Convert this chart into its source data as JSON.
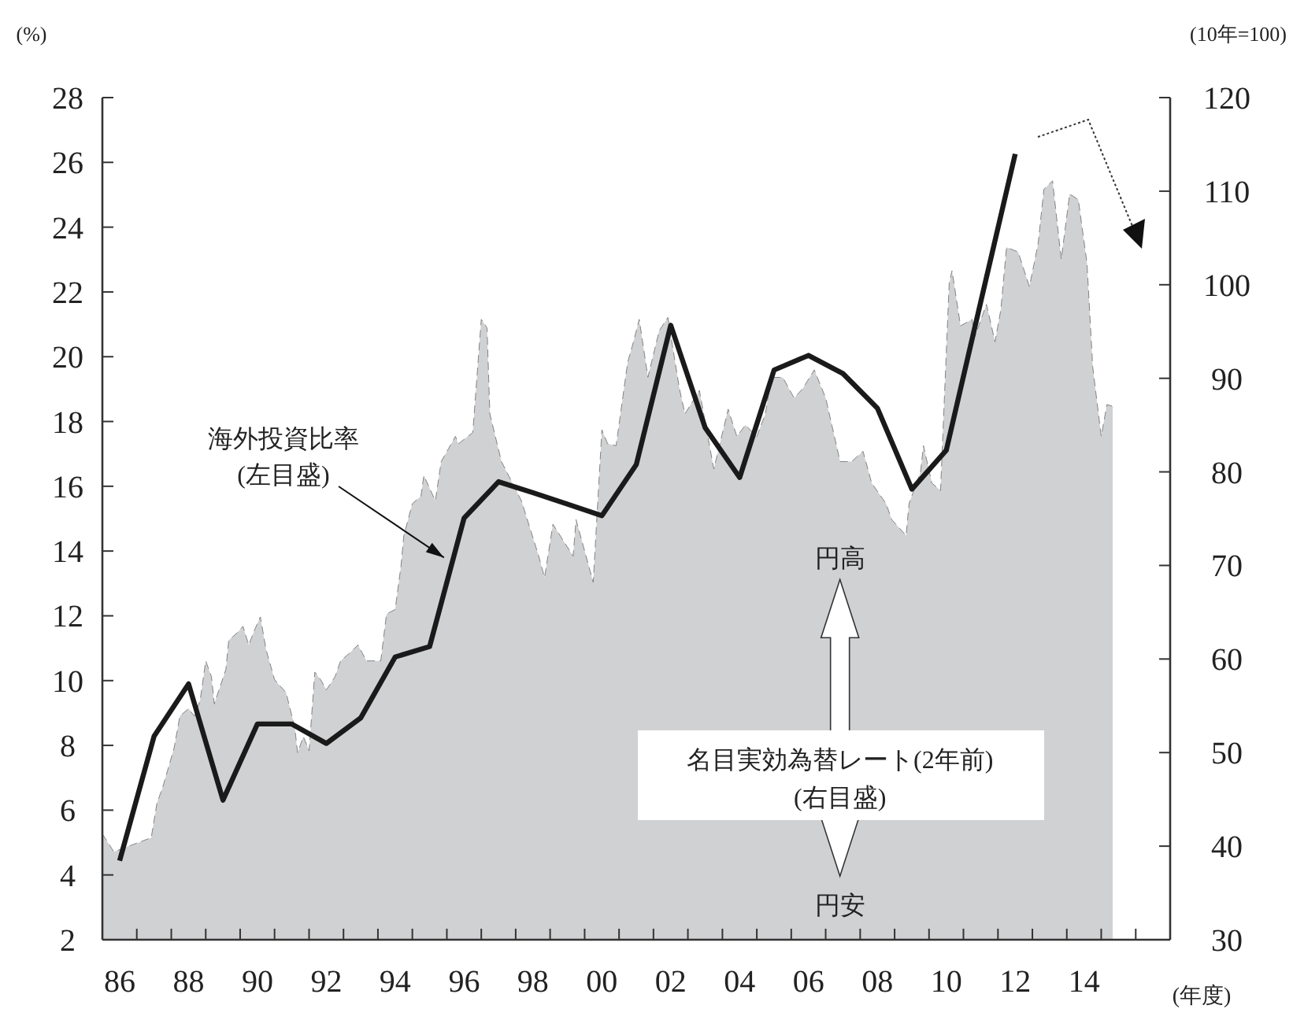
{
  "chart_data": {
    "type": "line",
    "ylabel": "(%)",
    "y2label": "(10年=100)",
    "xlabel": "(年度)",
    "xlim": [
      "1986-04-01",
      "2017-04-01"
    ],
    "ylim": [
      2,
      28
    ],
    "y2lim": [
      30,
      120
    ],
    "yticks": [
      2,
      4,
      6,
      8,
      10,
      12,
      14,
      16,
      18,
      20,
      22,
      24,
      26,
      28
    ],
    "y2ticks": [
      30,
      40,
      50,
      60,
      70,
      80,
      90,
      100,
      110,
      120
    ],
    "xticks": [
      {
        "value": "1986-04-01",
        "label": null
      },
      {
        "value": "1987-04-01",
        "label": null
      },
      {
        "value": "1988-04-01",
        "label": null
      },
      {
        "value": "1989-04-01",
        "label": null
      },
      {
        "value": "1990-04-01",
        "label": null
      },
      {
        "value": "1991-04-01",
        "label": null
      },
      {
        "value": "1992-04-01",
        "label": null
      },
      {
        "value": "1993-04-01",
        "label": null
      },
      {
        "value": "1994-04-01",
        "label": null
      },
      {
        "value": "1995-04-01",
        "label": null
      },
      {
        "value": "1996-04-01",
        "label": null
      },
      {
        "value": "1997-04-01",
        "label": null
      },
      {
        "value": "1998-04-01",
        "label": null
      },
      {
        "value": "1999-04-01",
        "label": null
      },
      {
        "value": "2000-04-01",
        "label": null
      },
      {
        "value": "2001-04-01",
        "label": null
      },
      {
        "value": "2002-04-01",
        "label": null
      },
      {
        "value": "2003-04-01",
        "label": null
      },
      {
        "value": "2004-04-01",
        "label": null
      },
      {
        "value": "2005-04-01",
        "label": null
      },
      {
        "value": "2006-04-01",
        "label": null
      },
      {
        "value": "2007-04-01",
        "label": null
      },
      {
        "value": "2008-04-01",
        "label": null
      },
      {
        "value": "2009-04-01",
        "label": null
      },
      {
        "value": "2010-04-01",
        "label": null
      },
      {
        "value": "2011-04-01",
        "label": null
      },
      {
        "value": "2012-04-01",
        "label": null
      },
      {
        "value": "2013-04-01",
        "label": null
      },
      {
        "value": "2014-04-01",
        "label": null
      },
      {
        "value": "2015-04-01",
        "label": null
      },
      {
        "value": "2016-04-01",
        "label": null
      },
      {
        "value": "1986-10-01",
        "label": "86"
      },
      {
        "value": "1988-10-01",
        "label": "88"
      },
      {
        "value": "1990-10-01",
        "label": "90"
      },
      {
        "value": "1992-10-01",
        "label": "92"
      },
      {
        "value": "1994-10-01",
        "label": "94"
      },
      {
        "value": "1996-10-01",
        "label": "96"
      },
      {
        "value": "1998-10-01",
        "label": "98"
      },
      {
        "value": "2000-10-01",
        "label": "00"
      },
      {
        "value": "2002-10-01",
        "label": "02"
      },
      {
        "value": "2004-10-01",
        "label": "04"
      },
      {
        "value": "2006-10-01",
        "label": "06"
      },
      {
        "value": "2008-10-01",
        "label": "08"
      },
      {
        "value": "2010-10-01",
        "label": "10"
      },
      {
        "value": "2012-10-01",
        "label": "12"
      },
      {
        "value": "2014-10-01",
        "label": "14"
      }
    ],
    "grid": false,
    "series": [
      {
        "type": "area",
        "axis": "y2",
        "color": "#d0d1d3",
        "line_style": "dashed",
        "x": [
          "1986-04",
          "1986-08",
          "1987-02",
          "1987-09",
          "1987-11",
          "1988-01",
          "1988-05",
          "1988-07",
          "1988-10",
          "1988-12",
          "1989-02",
          "1989-04",
          "1989-06",
          "1989-07",
          "1989-11",
          "1989-12",
          "1990-03",
          "1990-05",
          "1990-07",
          "1990-09",
          "1990-11",
          "1991-01",
          "1991-04",
          "1991-08",
          "1991-11",
          "1991-12",
          "1992-02",
          "1992-04",
          "1992-06",
          "1992-08",
          "1992-10",
          "1993-01",
          "1993-03",
          "1993-06",
          "1993-09",
          "1993-12",
          "1994-05",
          "1994-07",
          "1994-10",
          "1994-12",
          "1995-01",
          "1995-04",
          "1995-07",
          "1995-08",
          "1995-12",
          "1996-02",
          "1996-07",
          "1996-08",
          "1997-01",
          "1997-04",
          "1997-06",
          "1997-07",
          "1997-11",
          "1998-06",
          "1998-12",
          "1999-02",
          "1999-05",
          "1999-12",
          "2000-01",
          "2000-07",
          "2000-10",
          "2000-12",
          "2001-03",
          "2001-07",
          "2001-09",
          "2001-11",
          "2002-02",
          "2002-06",
          "2002-09",
          "2003-01",
          "2003-03",
          "2003-08",
          "2004-01",
          "2004-06",
          "2004-09",
          "2004-12",
          "2005-04",
          "2005-07",
          "2005-09",
          "2006-01",
          "2006-05",
          "2006-08",
          "2006-12",
          "2007-04",
          "2007-09",
          "2008-01",
          "2008-05",
          "2008-08",
          "2009-01",
          "2009-03",
          "2009-08",
          "2009-09",
          "2010-01",
          "2010-02",
          "2010-05",
          "2010-08",
          "2010-11",
          "2010-12",
          "2011-03",
          "2011-07",
          "2011-08",
          "2011-12",
          "2012-03",
          "2012-05",
          "2012-07",
          "2012-11",
          "2013-03",
          "2013-06",
          "2013-08",
          "2013-11",
          "2014-02",
          "2014-05",
          "2014-08",
          "2014-11",
          "2015-01",
          "2015-04",
          "2015-06",
          "2015-08"
        ],
        "values": [
          41.3,
          39.4,
          40.1,
          40.9,
          44.6,
          46.3,
          50.5,
          53.9,
          54.7,
          53.9,
          55.6,
          59.8,
          58.1,
          55.2,
          58.9,
          62.0,
          62.8,
          63.5,
          61.5,
          63.1,
          64.5,
          61.0,
          57.8,
          56.4,
          52.7,
          50.0,
          51.7,
          50.2,
          58.6,
          57.8,
          56.7,
          58.1,
          59.8,
          60.6,
          61.5,
          59.8,
          59.8,
          64.8,
          65.3,
          69.9,
          73.2,
          76.6,
          77.4,
          79.6,
          76.9,
          81.1,
          83.8,
          83.0,
          84.2,
          96.3,
          95.4,
          86.2,
          81.1,
          76.9,
          71.0,
          68.7,
          74.4,
          71.0,
          74.9,
          68.2,
          84.5,
          83.0,
          82.8,
          91.7,
          93.9,
          96.3,
          90.1,
          95.1,
          96.5,
          88.9,
          86.2,
          88.7,
          80.3,
          86.7,
          83.8,
          85.0,
          83.8,
          86.2,
          90.1,
          90.1,
          87.9,
          88.9,
          90.9,
          87.9,
          81.1,
          81.1,
          82.2,
          78.8,
          76.6,
          74.9,
          73.2,
          76.6,
          80.0,
          82.8,
          78.8,
          78.0,
          100.2,
          101.5,
          95.6,
          96.3,
          94.5,
          97.9,
          93.9,
          97.3,
          104.0,
          103.5,
          99.8,
          104.4,
          110.2,
          111.1,
          102.7,
          109.7,
          109.1,
          102.3,
          91.2,
          83.8,
          87.2,
          87.0
        ]
      },
      {
        "type": "line",
        "color": "#1a1a1a",
        "line_style": "solid",
        "marker": "none",
        "x": [
          "1986-10",
          "1987-10",
          "1988-10",
          "1989-10",
          "1990-10",
          "1991-10",
          "1992-10",
          "1993-10",
          "1994-10",
          "1995-10",
          "1996-10",
          "1997-10",
          "1998-10",
          "1999-10",
          "2000-10",
          "2001-10",
          "2002-10",
          "2003-10",
          "2004-10",
          "2005-10",
          "2006-10",
          "2007-10",
          "2008-10",
          "2009-10",
          "2010-10",
          "2011-10",
          "2012-10"
        ],
        "values": [
          4.44,
          8.28,
          9.9,
          6.31,
          8.66,
          8.66,
          8.06,
          8.85,
          10.73,
          11.05,
          15.02,
          16.14,
          15.8,
          15.45,
          15.09,
          16.67,
          20.97,
          17.81,
          16.27,
          19.59,
          20.04,
          19.48,
          18.41,
          15.91,
          17.11,
          21.69,
          26.26
        ]
      }
    ],
    "annotations": [
      {
        "text": "海外投資比率\n(左目盛)",
        "x": "1996-03",
        "y": 13.8
      },
      "名目実効為替レート(2年前)\n(右目盛)",
      "円高",
      "円安"
    ]
  }
}
